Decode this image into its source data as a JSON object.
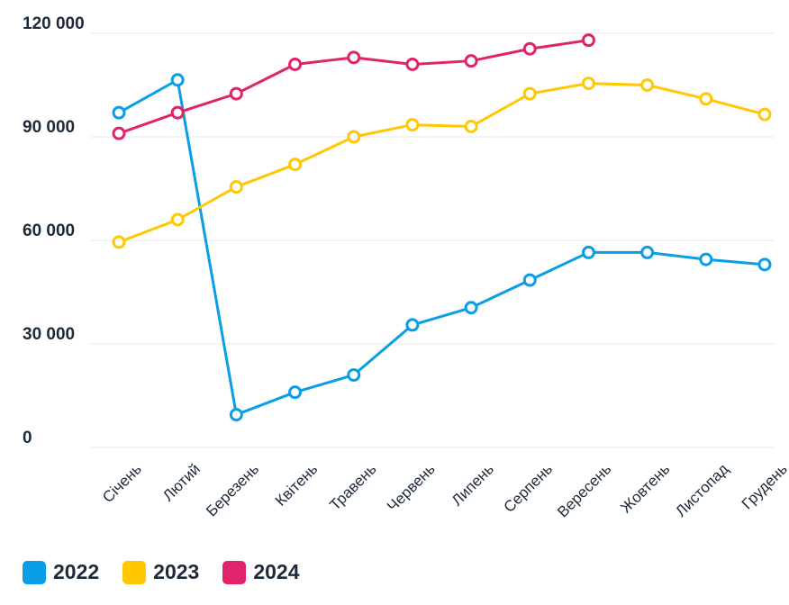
{
  "chart_data": {
    "type": "line",
    "categories": [
      "Січень",
      "Лютий",
      "Березень",
      "Квітень",
      "Травень",
      "Червень",
      "Липень",
      "Серпень",
      "Вересень",
      "Жовтень",
      "Листопад",
      "Грудень"
    ],
    "y_ticks": [
      "0",
      "30 000",
      "60 000",
      "90 000",
      "120 000"
    ],
    "ylim": [
      0,
      120000
    ],
    "grid": true,
    "legend_position": "bottom-left",
    "series": [
      {
        "name": "2022",
        "color": "#0a9ee6",
        "values": [
          97000,
          106500,
          9500,
          16000,
          21000,
          35500,
          40500,
          48500,
          56500,
          56500,
          54500,
          53000
        ]
      },
      {
        "name": "2023",
        "color": "#ffc800",
        "values": [
          59500,
          66000,
          75500,
          82000,
          90000,
          93500,
          93000,
          102500,
          105500,
          105000,
          101000,
          96500
        ]
      },
      {
        "name": "2024",
        "color": "#e0246b",
        "values": [
          91000,
          97000,
          102500,
          111000,
          113000,
          111000,
          112000,
          115500,
          118000,
          null,
          null,
          null
        ]
      }
    ]
  }
}
